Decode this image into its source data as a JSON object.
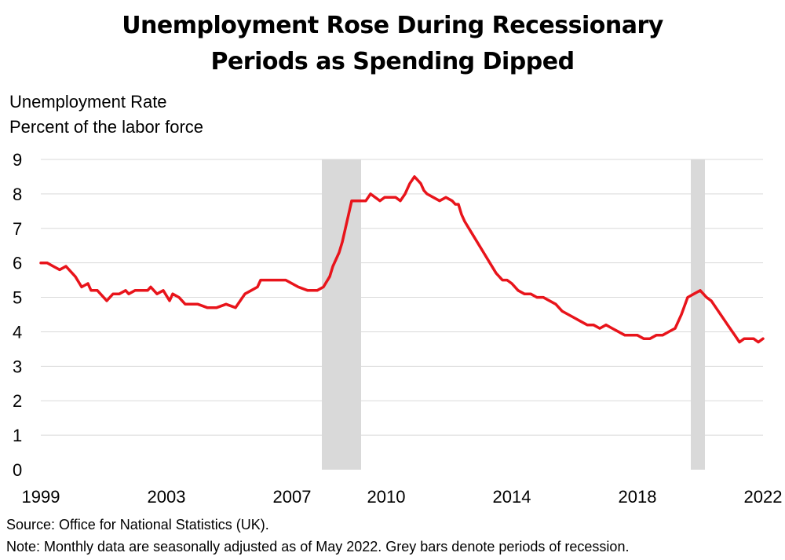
{
  "title_lines": [
    "Unemployment Rose During Recessionary",
    "Periods as Spending Dipped"
  ],
  "y_label_lines": [
    "Unemployment Rate",
    "Percent of the labor force"
  ],
  "source": "Source: Office for National Statistics (UK).",
  "note": "Note: Monthly data are seasonally adjusted as of May 2022. Grey bars denote periods of recession.",
  "colors": {
    "line": "#e8141b",
    "recession": "#d9d9d9",
    "grid": "#d9d9d9"
  },
  "chart_data": {
    "type": "line",
    "title": "Unemployment Rose During Recessionary Periods as Spending Dipped",
    "xlabel": "",
    "ylabel": "Unemployment Rate, Percent of the labor force",
    "xlim": [
      1999,
      2022
    ],
    "ylim": [
      0,
      9
    ],
    "y_ticks": [
      0,
      1,
      2,
      3,
      4,
      5,
      6,
      7,
      8,
      9
    ],
    "x_ticks": [
      1999,
      2003,
      2007,
      2010,
      2014,
      2018,
      2022
    ],
    "x_tick_labels": [
      "1999",
      "2003",
      "2007",
      "2010",
      "2014",
      "2018",
      "2022"
    ],
    "grid": true,
    "recessions": [
      {
        "start": 2007.95,
        "end": 2009.2
      },
      {
        "start": 2019.7,
        "end": 2020.15
      }
    ],
    "series": [
      {
        "name": "Unemployment Rate",
        "x": [
          1999.0,
          1999.2,
          1999.4,
          1999.6,
          1999.8,
          1999.9,
          2000.1,
          2000.3,
          2000.5,
          2000.6,
          2000.8,
          2000.9,
          2001.1,
          2001.3,
          2001.5,
          2001.7,
          2001.8,
          2002.0,
          2002.2,
          2002.4,
          2002.5,
          2002.7,
          2002.9,
          2003.1,
          2003.2,
          2003.4,
          2003.6,
          2003.8,
          2004.0,
          2004.3,
          2004.6,
          2004.9,
          2005.2,
          2005.5,
          2005.7,
          2005.9,
          2006.0,
          2006.1,
          2006.3,
          2006.5,
          2006.8,
          2007.0,
          2007.2,
          2007.5,
          2007.8,
          2008.0,
          2008.2,
          2008.3,
          2008.5,
          2008.6,
          2008.75,
          2008.9,
          2009.05,
          2009.2,
          2009.35,
          2009.5,
          2009.65,
          2009.8,
          2009.95,
          2010.1,
          2010.3,
          2010.45,
          2010.6,
          2010.75,
          2010.9,
          2011.0,
          2011.1,
          2011.2,
          2011.3,
          2011.5,
          2011.7,
          2011.9,
          2012.1,
          2012.2,
          2012.3,
          2012.4,
          2012.5,
          2012.7,
          2012.9,
          2013.1,
          2013.3,
          2013.5,
          2013.7,
          2013.85,
          2014.0,
          2014.2,
          2014.4,
          2014.6,
          2014.8,
          2015.0,
          2015.2,
          2015.4,
          2015.6,
          2015.8,
          2016.0,
          2016.2,
          2016.4,
          2016.6,
          2016.8,
          2017.0,
          2017.2,
          2017.4,
          2017.6,
          2017.8,
          2018.0,
          2018.2,
          2018.4,
          2018.6,
          2018.8,
          2019.0,
          2019.2,
          2019.4,
          2019.6,
          2019.8,
          2020.0,
          2020.2,
          2020.35,
          2020.5,
          2020.65,
          2020.8,
          2020.95,
          2021.1,
          2021.25,
          2021.4,
          2021.55,
          2021.7,
          2021.85,
          2022.0
        ],
        "values": [
          6.0,
          6.0,
          5.9,
          5.8,
          5.9,
          5.8,
          5.6,
          5.3,
          5.4,
          5.2,
          5.2,
          5.1,
          4.9,
          5.1,
          5.1,
          5.2,
          5.1,
          5.2,
          5.2,
          5.2,
          5.3,
          5.1,
          5.2,
          4.9,
          5.1,
          5.0,
          4.8,
          4.8,
          4.8,
          4.7,
          4.7,
          4.8,
          4.7,
          5.1,
          5.2,
          5.3,
          5.5,
          5.5,
          5.5,
          5.5,
          5.5,
          5.4,
          5.3,
          5.2,
          5.2,
          5.3,
          5.6,
          5.9,
          6.3,
          6.6,
          7.2,
          7.8,
          7.8,
          7.8,
          7.8,
          8.0,
          7.9,
          7.8,
          7.9,
          7.9,
          7.9,
          7.8,
          8.0,
          8.3,
          8.5,
          8.4,
          8.3,
          8.1,
          8.0,
          7.9,
          7.8,
          7.9,
          7.8,
          7.7,
          7.7,
          7.4,
          7.2,
          6.9,
          6.6,
          6.3,
          6.0,
          5.7,
          5.5,
          5.5,
          5.4,
          5.2,
          5.1,
          5.1,
          5.0,
          5.0,
          4.9,
          4.8,
          4.6,
          4.5,
          4.4,
          4.3,
          4.2,
          4.2,
          4.1,
          4.2,
          4.1,
          4.0,
          3.9,
          3.9,
          3.9,
          3.8,
          3.8,
          3.9,
          3.9,
          4.0,
          4.1,
          4.5,
          5.0,
          5.1,
          5.2,
          5.0,
          4.9,
          4.7,
          4.5,
          4.3,
          4.1,
          3.9,
          3.7,
          3.8,
          3.8,
          3.8,
          3.7,
          3.8
        ]
      }
    ]
  }
}
